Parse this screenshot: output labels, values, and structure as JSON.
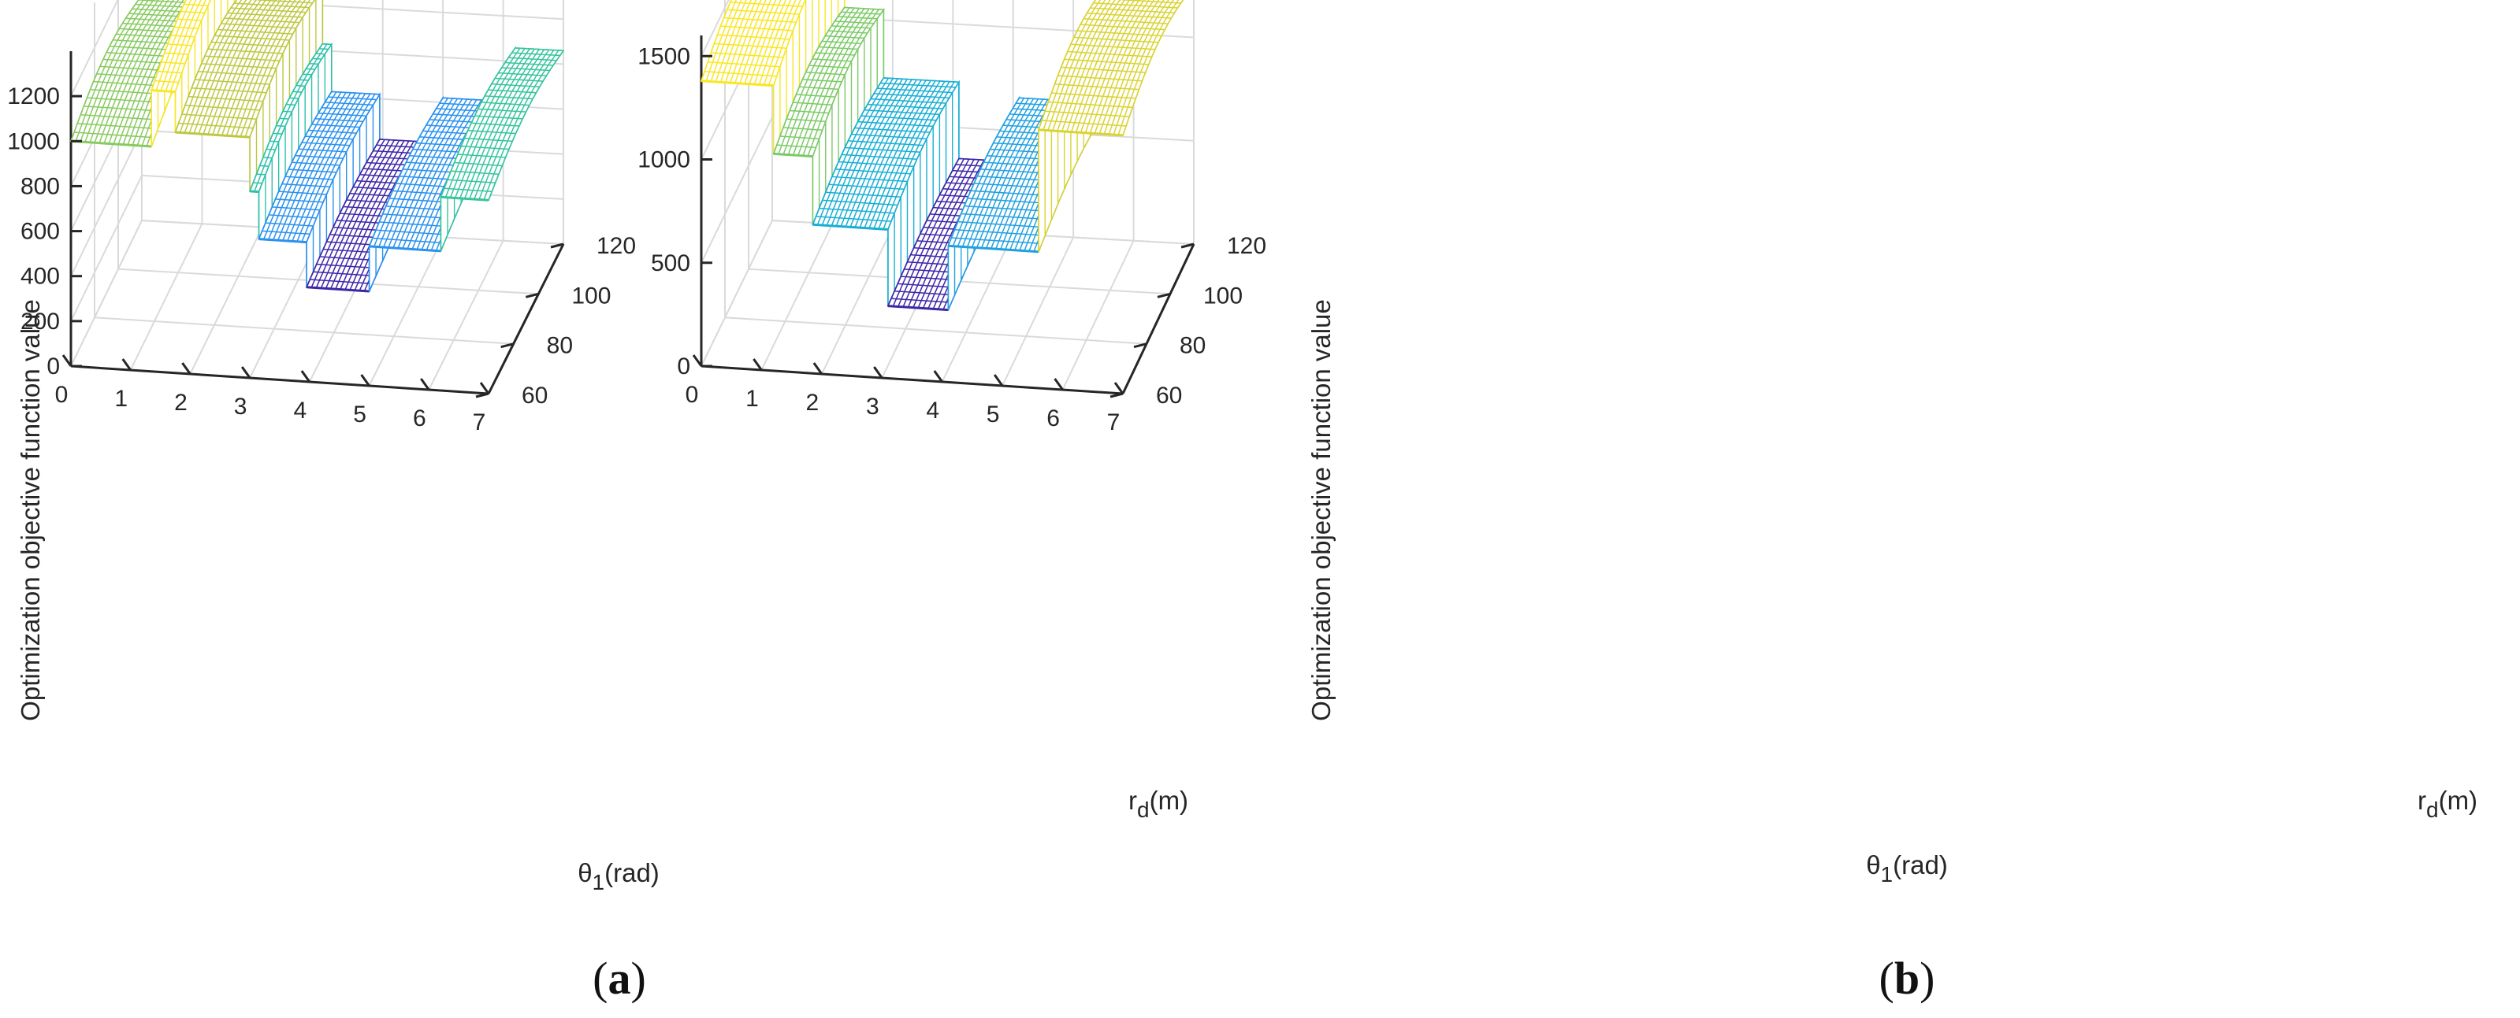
{
  "chart_data": [
    {
      "type": "surface3d",
      "panel": "a",
      "caption_open": "(",
      "caption_letter": "a",
      "caption_close": ")",
      "zlabel": "Optimization objective function value",
      "xlabel_main": "θ",
      "xlabel_sub": "1",
      "xlabel_unit": "(rad)",
      "ylabel_main": "r",
      "ylabel_sub": "d",
      "ylabel_unit": "(m)",
      "xticks": [
        "0",
        "1",
        "2",
        "3",
        "4",
        "5",
        "6",
        "7"
      ],
      "yticks": [
        "60",
        "80",
        "100",
        "120"
      ],
      "zticks": [
        "0",
        "200",
        "400",
        "600",
        "800",
        "1000",
        "1200"
      ],
      "xlim": [
        0,
        7
      ],
      "ylim": [
        60,
        120
      ],
      "zlim": [
        0,
        1400
      ],
      "colormap": "parula",
      "segments": [
        {
          "x0": 0.0,
          "x1": 1.35,
          "z": 1000
        },
        {
          "x0": 1.35,
          "x1": 1.75,
          "z": 1250
        },
        {
          "x0": 1.75,
          "x1": 3.0,
          "z": 1070
        },
        {
          "x0": 3.0,
          "x1": 3.15,
          "z": 830
        },
        {
          "x0": 3.15,
          "x1": 3.95,
          "z": 620
        },
        {
          "x0": 3.95,
          "x1": 5.0,
          "z": 420
        },
        {
          "x0": 5.0,
          "x1": 6.2,
          "z": 620
        },
        {
          "x0": 6.2,
          "x1": 7.0,
          "z": 860
        }
      ]
    },
    {
      "type": "surface3d",
      "panel": "b",
      "caption_open": "(",
      "caption_letter": "b",
      "caption_close": ")",
      "zlabel": "Optimization objective function value",
      "xlabel_main": "θ",
      "xlabel_sub": "1",
      "xlabel_unit": "(rad)",
      "ylabel_main": "r",
      "ylabel_sub": "d",
      "ylabel_unit": "(m)",
      "xticks": [
        "0",
        "1",
        "2",
        "3",
        "4",
        "5",
        "6",
        "7"
      ],
      "yticks": [
        "60",
        "80",
        "100",
        "120"
      ],
      "zticks": [
        "0",
        "500",
        "1000",
        "1500"
      ],
      "xlim": [
        0,
        7
      ],
      "ylim": [
        60,
        120
      ],
      "zlim": [
        0,
        1600
      ],
      "colormap": "parula",
      "segments": [
        {
          "x0": 0.0,
          "x1": 1.2,
          "z": 1380
        },
        {
          "x0": 1.2,
          "x1": 1.85,
          "z": 1050
        },
        {
          "x0": 1.85,
          "x1": 3.1,
          "z": 720
        },
        {
          "x0": 3.1,
          "x1": 4.1,
          "z": 350
        },
        {
          "x0": 4.1,
          "x1": 5.6,
          "z": 660
        },
        {
          "x0": 5.6,
          "x1": 7.0,
          "z": 1250
        }
      ]
    }
  ]
}
